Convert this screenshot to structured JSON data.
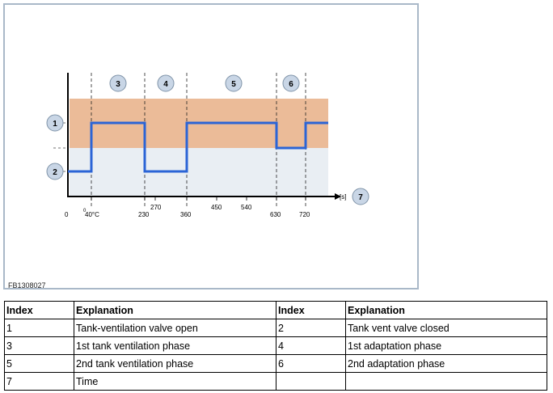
{
  "figure": {
    "id_label": "FB1308027",
    "time_unit_label": "[s]",
    "x_ticks_bottom": [
      "0",
      "40°C",
      "230",
      "360",
      "630",
      "720"
    ],
    "x_ticks_top": [
      "270",
      "450",
      "540"
    ],
    "small_zero": "0",
    "callouts": [
      "1",
      "2",
      "3",
      "4",
      "5",
      "6",
      "7"
    ],
    "colors": {
      "upper_band": "#ebbb98",
      "lower_band": "#e9eef3",
      "signal_line": "#2b64d6",
      "callout_fill": "#c9d6e6"
    }
  },
  "table": {
    "headers": [
      "Index",
      "Explanation",
      "Index",
      "Explanation"
    ],
    "rows": [
      [
        "1",
        "Tank-ventilation valve open",
        "2",
        "Tank vent valve closed"
      ],
      [
        "3",
        "1st tank ventilation phase",
        "4",
        "1st adaptation phase"
      ],
      [
        "5",
        "2nd tank ventilation phase",
        "6",
        "2nd adaptation phase"
      ],
      [
        "7",
        "Time",
        "",
        ""
      ]
    ]
  }
}
